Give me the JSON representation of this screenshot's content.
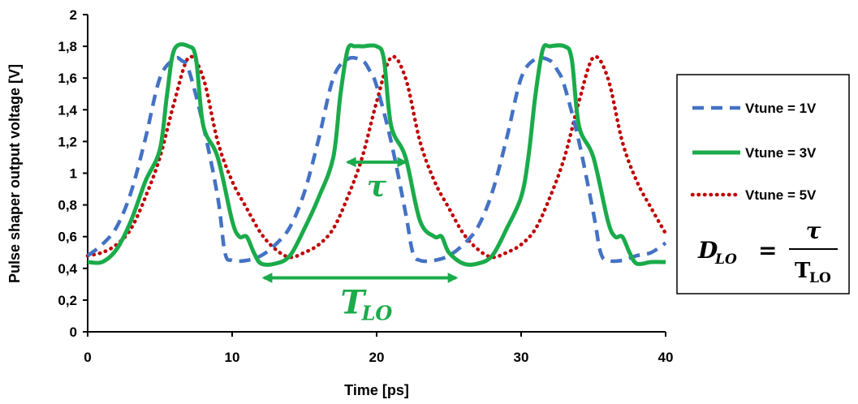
{
  "chart_data": {
    "type": "line",
    "title": "",
    "xlabel": "Time [ps]",
    "ylabel": "Pulse shaper output voltage [V]",
    "xlim": [
      0,
      40
    ],
    "ylim": [
      0,
      2
    ],
    "xticks": [
      0,
      10,
      20,
      30,
      40
    ],
    "xtick_labels": [
      "0",
      "10",
      "20",
      "30",
      "40"
    ],
    "yticks": [
      0,
      0.2,
      0.4,
      0.6,
      0.8,
      1.0,
      1.2,
      1.4,
      1.6,
      1.8,
      2.0
    ],
    "ytick_labels": [
      "0",
      "0,2",
      "0,4",
      "0,6",
      "0,8",
      "1",
      "1,2",
      "1,4",
      "1,6",
      "1,8",
      "2"
    ],
    "grid": false,
    "legend_position": "right",
    "series": [
      {
        "name": "Vtune = 1V",
        "color": "#4472c4",
        "style": "dashed",
        "x": [
          0,
          1,
          2,
          3,
          4,
          5,
          6,
          6.5,
          7,
          8,
          9,
          9.5,
          10,
          11,
          12,
          13,
          14,
          15,
          16,
          17,
          18,
          19,
          19.5,
          20,
          21,
          22,
          22.5,
          23,
          24,
          25,
          26,
          27,
          28,
          29,
          30,
          31,
          32,
          32.5,
          33,
          34,
          35,
          35.5,
          36,
          37,
          38,
          39,
          40
        ],
        "y": [
          0.48,
          0.55,
          0.66,
          0.88,
          1.22,
          1.6,
          1.72,
          1.71,
          1.65,
          1.3,
          0.85,
          0.5,
          0.45,
          0.45,
          0.48,
          0.55,
          0.66,
          0.88,
          1.22,
          1.6,
          1.72,
          1.71,
          1.65,
          1.55,
          1.2,
          0.75,
          0.5,
          0.45,
          0.45,
          0.48,
          0.55,
          0.66,
          0.88,
          1.22,
          1.6,
          1.72,
          1.71,
          1.65,
          1.55,
          1.2,
          0.75,
          0.5,
          0.45,
          0.45,
          0.48,
          0.5,
          0.56
        ]
      },
      {
        "name": "Vtune = 3V",
        "color": "#1aab4a",
        "style": "solid",
        "x": [
          0,
          1,
          2,
          3,
          4,
          5,
          5.5,
          6,
          7,
          7.5,
          8,
          9,
          10,
          10.5,
          11,
          11.5,
          12,
          13,
          14,
          15,
          16,
          17,
          17.5,
          18,
          18.5,
          19,
          20,
          20.5,
          21,
          22,
          23,
          24,
          24.5,
          25,
          26,
          27,
          28,
          29,
          30,
          30.5,
          31,
          31.5,
          32,
          33,
          33.5,
          34,
          35,
          36,
          36.5,
          37,
          37.5,
          38,
          39,
          40
        ],
        "y": [
          0.44,
          0.44,
          0.52,
          0.7,
          0.95,
          1.15,
          1.5,
          1.78,
          1.8,
          1.72,
          1.3,
          1.1,
          0.7,
          0.6,
          0.6,
          0.5,
          0.43,
          0.43,
          0.48,
          0.65,
          0.85,
          1.1,
          1.5,
          1.78,
          1.8,
          1.8,
          1.8,
          1.72,
          1.3,
          1.1,
          0.7,
          0.6,
          0.6,
          0.5,
          0.43,
          0.43,
          0.48,
          0.65,
          0.85,
          1.1,
          1.5,
          1.78,
          1.8,
          1.8,
          1.72,
          1.3,
          1.1,
          0.7,
          0.6,
          0.6,
          0.5,
          0.43,
          0.44,
          0.44
        ]
      },
      {
        "name": "Vtune = 5V",
        "color": "#c00000",
        "style": "dotted",
        "x": [
          0,
          1,
          2,
          3,
          4,
          5,
          6,
          7,
          8,
          9,
          10,
          11,
          12,
          13,
          14,
          15,
          16,
          17,
          18,
          19,
          20,
          21,
          22,
          23,
          24,
          25,
          26,
          27,
          28,
          29,
          30,
          31,
          32,
          33,
          34,
          35,
          36,
          37,
          38,
          39,
          40
        ],
        "y": [
          0.48,
          0.5,
          0.55,
          0.65,
          0.85,
          1.1,
          1.45,
          1.73,
          1.6,
          1.2,
          0.95,
          0.78,
          0.62,
          0.52,
          0.47,
          0.5,
          0.55,
          0.65,
          0.85,
          1.1,
          1.45,
          1.73,
          1.6,
          1.2,
          0.95,
          0.78,
          0.62,
          0.52,
          0.47,
          0.5,
          0.55,
          0.65,
          0.85,
          1.1,
          1.45,
          1.73,
          1.6,
          1.2,
          0.95,
          0.78,
          0.62
        ]
      }
    ],
    "annotations": [
      {
        "kind": "double-arrow",
        "label": "τ",
        "x_start": 18,
        "x_end": 22,
        "y": 1.07,
        "color": "#1aab4a"
      },
      {
        "kind": "double-arrow",
        "label": "T",
        "sub": "LO",
        "x_start": 12.2,
        "x_end": 25.5,
        "y": 0.34,
        "color": "#1aab4a"
      }
    ],
    "formula": {
      "lhs": "D",
      "lhs_sub": "LO",
      "equals": "=",
      "numerator": "τ",
      "denominator": "T",
      "denominator_sub": "LO"
    }
  }
}
